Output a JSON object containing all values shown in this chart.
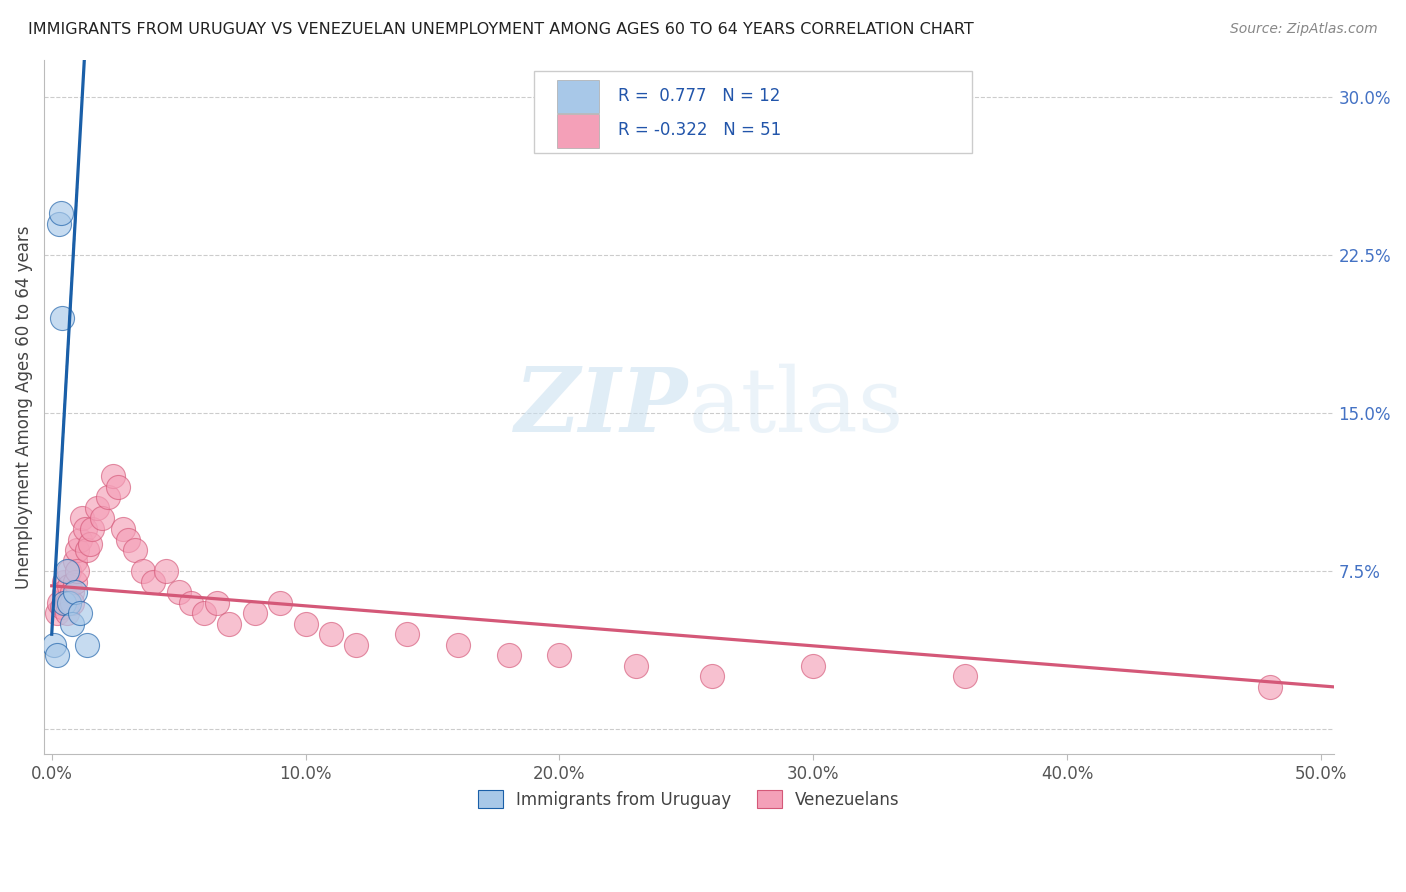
{
  "title": "IMMIGRANTS FROM URUGUAY VS VENEZUELAN UNEMPLOYMENT AMONG AGES 60 TO 64 YEARS CORRELATION CHART",
  "source": "Source: ZipAtlas.com",
  "ylabel": "Unemployment Among Ages 60 to 64 years",
  "xlabel_ticks": [
    0.0,
    0.1,
    0.2,
    0.3,
    0.4,
    0.5
  ],
  "xlabel_labels": [
    "0.0%",
    "10.0%",
    "20.0%",
    "30.0%",
    "40.0%",
    "50.0%"
  ],
  "ytick_values": [
    0.0,
    0.075,
    0.15,
    0.225,
    0.3
  ],
  "ytick_labels": [
    "",
    "7.5%",
    "15.0%",
    "22.5%",
    "30.0%"
  ],
  "xlim": [
    -0.003,
    0.505
  ],
  "ylim": [
    -0.012,
    0.318
  ],
  "legend_label1": "Immigrants from Uruguay",
  "legend_label2": "Venezuelans",
  "R1": 0.777,
  "N1": 12,
  "R2": -0.322,
  "N2": 51,
  "color_uruguay": "#a8c8e8",
  "color_venezuela": "#f4a0b8",
  "color_line_uruguay": "#1a5fa8",
  "color_line_venezuela": "#d45878",
  "watermark_zip": "ZIP",
  "watermark_atlas": "atlas",
  "uruguay_x": [
    0.001,
    0.002,
    0.003,
    0.0035,
    0.004,
    0.005,
    0.006,
    0.007,
    0.008,
    0.009,
    0.011,
    0.014
  ],
  "uruguay_y": [
    0.04,
    0.035,
    0.24,
    0.245,
    0.195,
    0.06,
    0.075,
    0.06,
    0.05,
    0.065,
    0.055,
    0.04
  ],
  "venezuela_x": [
    0.002,
    0.003,
    0.004,
    0.005,
    0.005,
    0.006,
    0.006,
    0.007,
    0.007,
    0.008,
    0.008,
    0.009,
    0.009,
    0.01,
    0.01,
    0.011,
    0.012,
    0.013,
    0.014,
    0.015,
    0.016,
    0.018,
    0.02,
    0.022,
    0.024,
    0.026,
    0.028,
    0.03,
    0.033,
    0.036,
    0.04,
    0.045,
    0.05,
    0.055,
    0.06,
    0.065,
    0.07,
    0.08,
    0.09,
    0.1,
    0.11,
    0.12,
    0.14,
    0.16,
    0.18,
    0.2,
    0.23,
    0.26,
    0.3,
    0.36,
    0.48
  ],
  "venezuela_y": [
    0.055,
    0.06,
    0.058,
    0.07,
    0.065,
    0.06,
    0.055,
    0.075,
    0.068,
    0.065,
    0.06,
    0.08,
    0.07,
    0.085,
    0.075,
    0.09,
    0.1,
    0.095,
    0.085,
    0.088,
    0.095,
    0.105,
    0.1,
    0.11,
    0.12,
    0.115,
    0.095,
    0.09,
    0.085,
    0.075,
    0.07,
    0.075,
    0.065,
    0.06,
    0.055,
    0.06,
    0.05,
    0.055,
    0.06,
    0.05,
    0.045,
    0.04,
    0.045,
    0.04,
    0.035,
    0.035,
    0.03,
    0.025,
    0.03,
    0.025,
    0.02
  ],
  "background_color": "#ffffff",
  "grid_color": "#cccccc"
}
